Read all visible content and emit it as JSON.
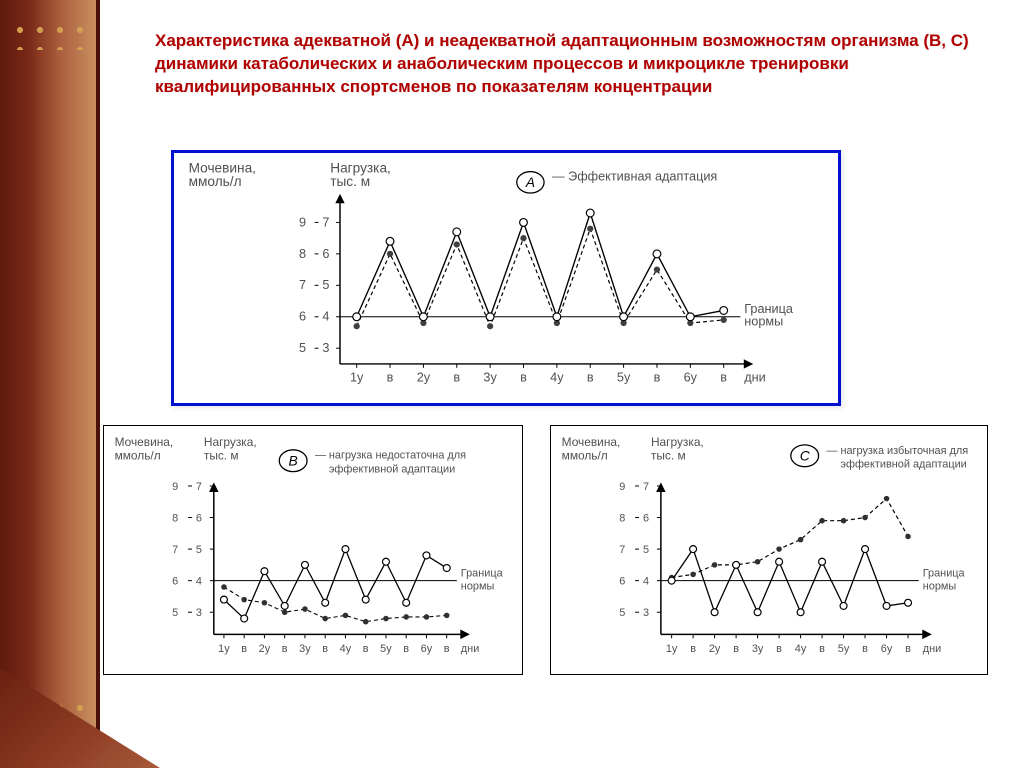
{
  "title_text": "Характеристика адекватной (А) и неадекватной адаптационным возможностям организма (В, С) динамики катаболических и анаболическим процессов и микроцикле тренировки квалифицированных спортсменов по показателям концентрации",
  "common": {
    "y1_label": "Мочевина,\nммоль/л",
    "y2_label": "Нагрузка,\nтыс. м",
    "x_label": "дни",
    "boundary_label": "Граница\nнормы",
    "boundary_y_value": 6,
    "x_ticks": [
      "1у",
      "в",
      "2у",
      "в",
      "3у",
      "в",
      "4у",
      "в",
      "5у",
      "в",
      "6у",
      "в"
    ],
    "y1_ticks": [
      5,
      6,
      7,
      8,
      9
    ],
    "y2_ticks": [
      3,
      4,
      5,
      6,
      7
    ],
    "axis_color": "#000000",
    "grid_color": "#000000",
    "text_color": "#505050",
    "font_size_labels": 13,
    "font_size_ticks": 12,
    "background": "#ffffff"
  },
  "chart_a": {
    "badge": "А",
    "legend": "Эффективная адаптация",
    "solid": {
      "values": [
        6.0,
        8.4,
        6.0,
        8.7,
        6.0,
        9.0,
        6.0,
        9.3,
        6.0,
        8.0,
        6.0,
        6.2
      ],
      "stroke": "#000000",
      "stroke_width": 1.4,
      "marker": "open-circle",
      "marker_fill": "#ffffff",
      "marker_stroke": "#000000",
      "marker_size": 4
    },
    "dashed": {
      "values": [
        5.7,
        8.0,
        5.8,
        8.3,
        5.7,
        8.5,
        5.8,
        8.8,
        5.8,
        7.5,
        5.8,
        5.9
      ],
      "stroke": "#000000",
      "stroke_width": 1.2,
      "dash": "4 3",
      "marker": "filled-circle",
      "marker_fill": "#404040",
      "marker_size": 3.2
    }
  },
  "chart_b": {
    "badge": "В",
    "legend": "нагрузка недостаточна для\nэффективной адаптации",
    "solid": {
      "values": [
        5.4,
        4.8,
        6.3,
        5.2,
        6.5,
        5.3,
        7.0,
        5.4,
        6.6,
        5.3,
        6.8,
        6.4
      ],
      "stroke": "#000000",
      "stroke_width": 1.3,
      "marker": "open-circle",
      "marker_fill": "#ffffff",
      "marker_stroke": "#000000",
      "marker_size": 3.5
    },
    "dashed": {
      "values": [
        5.8,
        5.4,
        5.3,
        5.0,
        5.1,
        4.8,
        4.9,
        4.7,
        4.8,
        4.85,
        4.85,
        4.9
      ],
      "stroke": "#000000",
      "stroke_width": 1.1,
      "dash": "4 3",
      "marker": "filled-circle",
      "marker_fill": "#303030",
      "marker_size": 2.8
    }
  },
  "chart_c": {
    "badge": "С",
    "legend": "нагрузка избыточная для\nэффективной адаптации",
    "solid": {
      "values": [
        6.0,
        7.0,
        5.0,
        6.5,
        5.0,
        6.6,
        5.0,
        6.6,
        5.2,
        7.0,
        5.2,
        5.3
      ],
      "stroke": "#000000",
      "stroke_width": 1.3,
      "marker": "open-circle",
      "marker_fill": "#ffffff",
      "marker_stroke": "#000000",
      "marker_size": 3.5
    },
    "dashed": {
      "values": [
        6.1,
        6.2,
        6.5,
        6.5,
        6.6,
        7.0,
        7.3,
        7.9,
        7.9,
        8.0,
        8.6,
        7.4
      ],
      "stroke": "#000000",
      "stroke_width": 1.2,
      "dash": "4 3",
      "marker": "filled-circle",
      "marker_fill": "#303030",
      "marker_size": 2.8
    }
  },
  "style": {
    "title_color": "#b00000",
    "frame_a_border": "#0010d0",
    "frame_bc_border": "#000000",
    "badge_stroke": "#000000",
    "badge_fill": "#ffffff"
  }
}
